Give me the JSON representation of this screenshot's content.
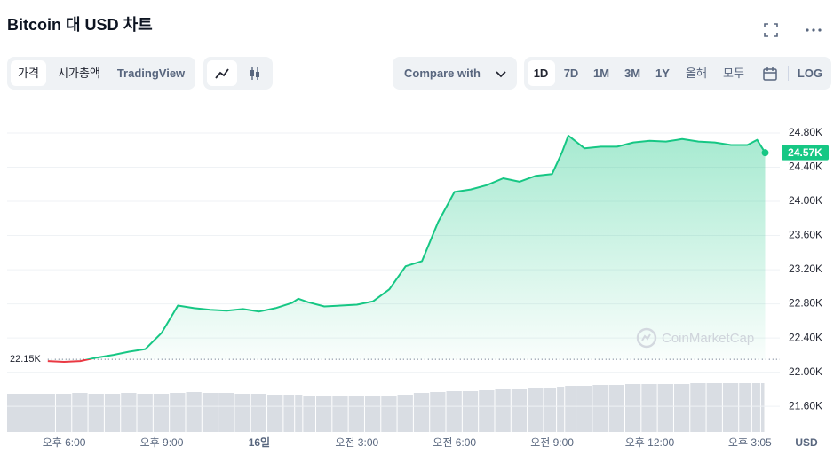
{
  "header": {
    "title": "Bitcoin 대 USD 차트"
  },
  "toolbar": {
    "tabs": [
      "가격",
      "시가총액",
      "TradingView"
    ],
    "compare": "Compare with",
    "ranges": [
      "1D",
      "7D",
      "1M",
      "3M",
      "1Y",
      "올해",
      "모두"
    ],
    "log": "LOG"
  },
  "chart_data": {
    "type": "line",
    "x": [
      17.5,
      18,
      18.5,
      19,
      19.5,
      20,
      20.5,
      21,
      21.5,
      22,
      22.5,
      23,
      23.5,
      24,
      24.5,
      25,
      25.2,
      25.5,
      26,
      26.5,
      27,
      27.5,
      28,
      28.5,
      29,
      29.5,
      30,
      30.5,
      31,
      31.5,
      32,
      32.5,
      33,
      33.3,
      33.5,
      34,
      34.5,
      35,
      35.5,
      36,
      36.5,
      37,
      37.5,
      38,
      38.5,
      39,
      39.3,
      39.55
    ],
    "values": [
      22130,
      22120,
      22130,
      22170,
      22200,
      22240,
      22270,
      22460,
      22780,
      22750,
      22730,
      22720,
      22740,
      22710,
      22750,
      22810,
      22860,
      22820,
      22770,
      22780,
      22790,
      22830,
      22970,
      23240,
      23300,
      23760,
      24110,
      24140,
      24190,
      24270,
      24230,
      24300,
      24320,
      24570,
      24770,
      24620,
      24640,
      24640,
      24690,
      24710,
      24700,
      24730,
      24700,
      24690,
      24660,
      24660,
      24720,
      24570
    ],
    "volume": [
      43,
      43,
      44,
      43,
      43,
      44,
      43,
      43,
      44,
      45,
      44,
      44,
      43,
      43,
      42,
      42,
      42,
      41,
      41,
      41,
      40,
      40,
      41,
      42,
      44,
      45,
      46,
      46,
      47,
      48,
      48,
      49,
      50,
      51,
      52,
      52,
      53,
      53,
      54,
      54,
      54,
      54,
      55,
      55,
      55,
      55,
      55,
      55
    ],
    "color": "#16c784",
    "down_color": "#ea3943",
    "volume_color": "#d9dde3",
    "xlim": [
      16.25,
      40
    ],
    "xticks": [
      {
        "value": 18,
        "label": "오후 6:00"
      },
      {
        "value": 21,
        "label": "오후 9:00"
      },
      {
        "value": 24,
        "label": "16일"
      },
      {
        "value": 27,
        "label": "오전 3:00"
      },
      {
        "value": 30,
        "label": "오전 6:00"
      },
      {
        "value": 33,
        "label": "오전 9:00"
      },
      {
        "value": 36,
        "label": "오후 12:00"
      },
      {
        "value": 39.08,
        "label": "오후 3:05"
      }
    ],
    "ylim": [
      21300,
      25200
    ],
    "yticks": [
      {
        "value": 21600,
        "label": "21.60K"
      },
      {
        "value": 22000,
        "label": "22.00K"
      },
      {
        "value": 22400,
        "label": "22.40K"
      },
      {
        "value": 22800,
        "label": "22.80K"
      },
      {
        "value": 23200,
        "label": "23.20K"
      },
      {
        "value": 23600,
        "label": "23.60K"
      },
      {
        "value": 24000,
        "label": "24.00K"
      },
      {
        "value": 24400,
        "label": "24.40K"
      },
      {
        "value": 24800,
        "label": "24.80K"
      }
    ],
    "reference": {
      "value": 22150,
      "label": "22.15K"
    },
    "current_price": {
      "value": 24570,
      "label": "24.57K"
    },
    "watermark": "CoinMarketCap",
    "x_axis_label": "USD",
    "grid": true
  }
}
